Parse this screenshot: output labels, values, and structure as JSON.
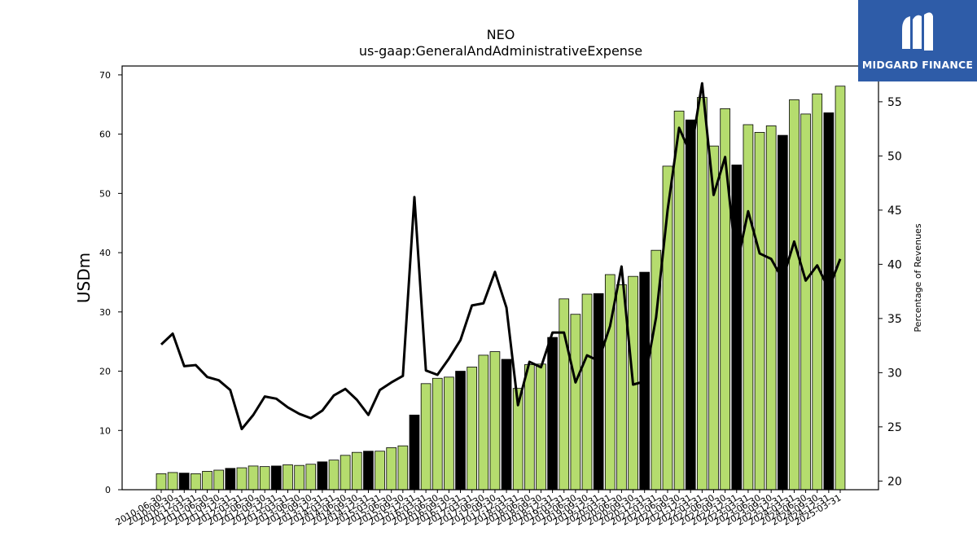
{
  "brand": {
    "name": "MIDGARD FINANCE",
    "bg_color": "#2e5ca8"
  },
  "chart_data": {
    "type": "bar",
    "title": "NEO",
    "subtitle": "us-gaap:GeneralAndAdministrativeExpense",
    "ylabel": "USDm",
    "y2label": "Percentage of Revenues",
    "ylim": [
      0,
      71.5
    ],
    "y2lim": [
      19.2,
      58.3
    ],
    "yticks": [
      0,
      10,
      20,
      30,
      40,
      50,
      60,
      70
    ],
    "y2ticks": [
      20,
      25,
      30,
      35,
      40,
      45,
      50,
      55
    ],
    "grid": false,
    "colors": {
      "quarter": "#b5dc6e",
      "annual": "#000000",
      "line": "#000000"
    },
    "categories": [
      "2010-06-30",
      "2010-09-30",
      "2010-12-31",
      "2011-03-31",
      "2011-06-30",
      "2011-09-30",
      "2011-12-31",
      "2012-03-31",
      "2012-06-30",
      "2012-09-30",
      "2012-12-31",
      "2013-03-31",
      "2013-06-30",
      "2013-09-30",
      "2013-12-31",
      "2014-03-31",
      "2014-06-30",
      "2014-09-30",
      "2014-12-31",
      "2015-03-31",
      "2015-06-30",
      "2015-09-30",
      "2015-12-31",
      "2016-03-31",
      "2016-06-30",
      "2016-09-30",
      "2016-12-31",
      "2017-03-31",
      "2017-06-30",
      "2017-09-30",
      "2017-12-31",
      "2018-03-31",
      "2018-06-30",
      "2018-09-30",
      "2018-12-31",
      "2019-03-31",
      "2019-06-30",
      "2019-09-30",
      "2019-12-31",
      "2020-03-31",
      "2020-06-30",
      "2020-09-30",
      "2020-12-31",
      "2021-03-31",
      "2021-06-30",
      "2021-09-30",
      "2021-12-31",
      "2022-03-31",
      "2022-06-30",
      "2022-09-30",
      "2022-12-31",
      "2023-03-31",
      "2023-06-30",
      "2023-09-30",
      "2023-12-31",
      "2024-03-31",
      "2024-06-30",
      "2024-09-30",
      "2024-12-31",
      "2025-03-31"
    ],
    "series": [
      {
        "kind": "bar",
        "axis": "left",
        "values": [
          2.7,
          2.9,
          2.8,
          2.7,
          3.1,
          3.3,
          3.6,
          3.7,
          4.0,
          3.9,
          4.0,
          4.2,
          4.1,
          4.3,
          4.7,
          5.0,
          5.8,
          6.3,
          6.5,
          6.5,
          7.1,
          7.4,
          12.6,
          17.9,
          18.8,
          19.0,
          20.0,
          20.7,
          22.7,
          23.3,
          22.0,
          17.1,
          21.1,
          21.2,
          25.7,
          32.2,
          29.6,
          33.0,
          33.1,
          36.3,
          34.6,
          36.0,
          36.7,
          40.4,
          54.6,
          63.9,
          62.4,
          66.2,
          58.0,
          64.3,
          54.8,
          61.6,
          60.3,
          61.4,
          59.8,
          65.8,
          63.4,
          66.8,
          63.6,
          68.1
        ],
        "is_annual": [
          false,
          false,
          true,
          false,
          false,
          false,
          true,
          false,
          false,
          false,
          true,
          false,
          false,
          false,
          true,
          false,
          false,
          false,
          true,
          false,
          false,
          false,
          true,
          false,
          false,
          false,
          true,
          false,
          false,
          false,
          true,
          false,
          false,
          false,
          true,
          false,
          false,
          false,
          true,
          false,
          false,
          false,
          true,
          false,
          false,
          false,
          true,
          false,
          false,
          false,
          true,
          false,
          false,
          false,
          true,
          false,
          false,
          false,
          true,
          false
        ]
      },
      {
        "kind": "line",
        "axis": "right",
        "values": [
          32.6,
          33.6,
          30.6,
          30.7,
          29.6,
          29.3,
          28.4,
          24.8,
          26.1,
          27.8,
          27.6,
          26.8,
          26.2,
          25.8,
          26.5,
          27.9,
          28.5,
          27.5,
          26.1,
          28.4,
          29.1,
          29.7,
          46.2,
          30.2,
          29.8,
          31.3,
          33.0,
          36.2,
          36.4,
          39.3,
          36.0,
          27.0,
          31.0,
          30.5,
          33.7,
          33.7,
          29.1,
          31.6,
          31.1,
          34.3,
          39.8,
          28.9,
          29.2,
          35.1,
          45.0,
          52.6,
          50.2,
          56.7,
          46.4,
          49.9,
          39.8,
          44.9,
          41.0,
          40.5,
          38.6,
          42.1,
          38.5,
          39.9,
          37.7,
          40.5
        ]
      }
    ]
  }
}
